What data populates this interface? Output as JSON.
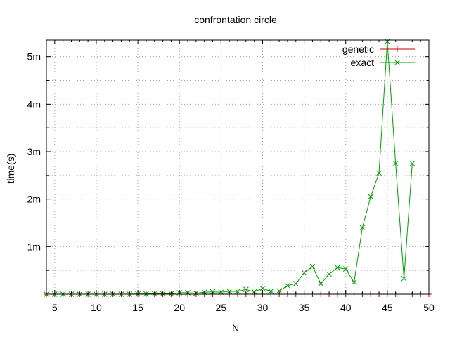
{
  "chart_data": {
    "type": "line",
    "title": "confrontation circle",
    "xlabel": "N",
    "ylabel": "time(s)",
    "xlim": [
      4,
      50
    ],
    "ylim": [
      0,
      5.35
    ],
    "x_ticks": [
      5,
      10,
      15,
      20,
      25,
      30,
      35,
      40,
      45,
      50
    ],
    "x_tick_labels": [
      "5",
      "10",
      "15",
      "20",
      "25",
      "30",
      "35",
      "40",
      "45",
      "50"
    ],
    "y_ticks": [
      1,
      2,
      3,
      4,
      5
    ],
    "y_tick_labels": [
      "1m",
      "2m",
      "3m",
      "4m",
      "5m"
    ],
    "grid": true,
    "legend_position": "top-right",
    "series": [
      {
        "name": "genetic",
        "color": "#cc0000",
        "marker": "plus",
        "x": [
          4,
          5,
          6,
          7,
          8,
          9,
          10,
          11,
          12,
          13,
          14,
          15,
          16,
          17,
          18,
          19,
          20,
          21,
          22,
          23,
          24,
          25,
          26,
          27,
          28,
          29,
          30,
          31,
          32,
          33,
          34,
          35,
          36,
          37,
          38,
          39,
          40,
          41,
          42,
          43,
          44,
          45,
          46,
          47,
          48,
          49,
          50
        ],
        "values": [
          0,
          0,
          0,
          0,
          0,
          0,
          0,
          0,
          0,
          0,
          0,
          0,
          0,
          0,
          0,
          0,
          0,
          0,
          0,
          0,
          0,
          0,
          0,
          0,
          0,
          0,
          0,
          0,
          0,
          0,
          0,
          0,
          0,
          0,
          0,
          0,
          0,
          0,
          0,
          0,
          0,
          0,
          0,
          0,
          0,
          0,
          0
        ]
      },
      {
        "name": "exact",
        "color": "#00a000",
        "marker": "x",
        "x": [
          4,
          5,
          6,
          7,
          8,
          9,
          10,
          11,
          12,
          13,
          14,
          15,
          16,
          17,
          18,
          19,
          20,
          21,
          22,
          23,
          24,
          25,
          26,
          27,
          28,
          29,
          30,
          31,
          32,
          33,
          34,
          35,
          36,
          37,
          38,
          39,
          40,
          41,
          42,
          43,
          44,
          45,
          46,
          47,
          48
        ],
        "values": [
          0,
          0,
          0,
          0,
          0,
          0,
          0,
          0,
          0,
          0,
          0,
          0.005,
          0.005,
          0.01,
          0.01,
          0.01,
          0.03,
          0.03,
          0.02,
          0.04,
          0.05,
          0.04,
          0.06,
          0.06,
          0.1,
          0.05,
          0.12,
          0.06,
          0.07,
          0.18,
          0.22,
          0.45,
          0.58,
          0.22,
          0.42,
          0.56,
          0.53,
          0.25,
          1.4,
          2.05,
          2.55,
          5.32,
          2.75,
          0.33,
          2.75
        ]
      }
    ]
  }
}
